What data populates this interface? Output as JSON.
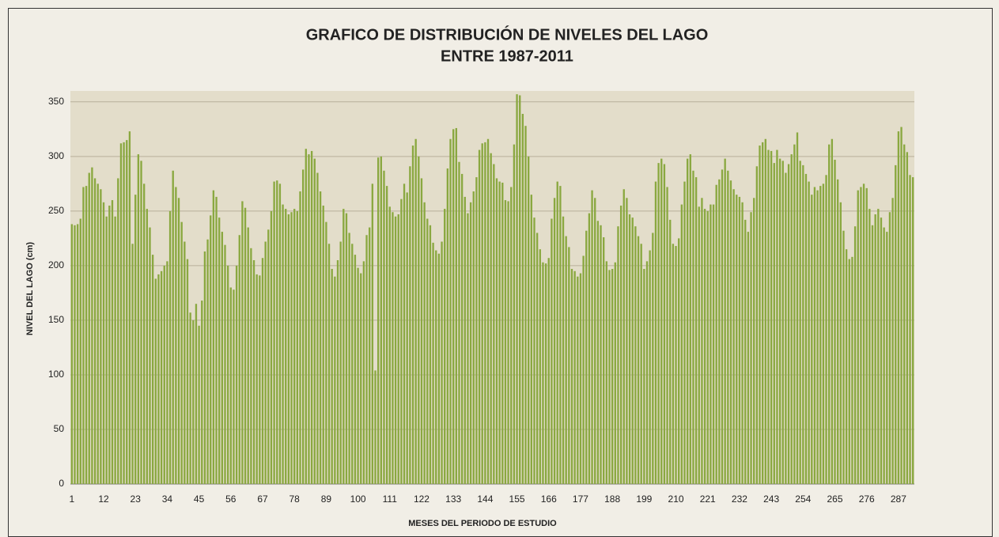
{
  "chart_data": {
    "type": "bar",
    "title": "GRAFICO DE DISTRIBUCIÓN DE NIVELES DEL LAGO",
    "subtitle": "ENTRE 1987-2011",
    "x_label": "MESES DEL PERIODO DE ESTUDIO",
    "y_label": "NIVEL DEL LAGO (cm)",
    "color": "#8aa840",
    "grid": true,
    "ylim": [
      0,
      360
    ],
    "yticks": [
      0,
      50,
      100,
      150,
      200,
      250,
      300,
      350
    ],
    "categories": [
      1,
      null,
      null,
      null,
      null,
      null,
      null,
      null,
      null,
      null,
      null,
      12,
      null,
      null,
      null,
      null,
      null,
      null,
      null,
      null,
      null,
      null,
      23,
      null,
      null,
      null,
      null,
      null,
      null,
      null,
      null,
      null,
      null,
      34,
      null,
      null,
      null,
      null,
      null,
      null,
      null,
      null,
      null,
      null,
      45,
      null,
      null,
      null,
      null,
      null,
      null,
      null,
      null,
      null,
      null,
      56,
      null,
      null,
      null,
      null,
      null,
      null,
      null,
      null,
      null,
      null,
      67,
      null,
      null,
      null,
      null,
      null,
      null,
      null,
      null,
      null,
      null,
      78,
      null,
      null,
      null,
      null,
      null,
      null,
      null,
      null,
      null,
      null,
      89,
      null,
      null,
      null,
      null,
      null,
      null,
      null,
      null,
      null,
      null,
      100,
      null,
      null,
      null,
      null,
      null,
      null,
      null,
      null,
      null,
      null,
      111,
      null,
      null,
      null,
      null,
      null,
      null,
      null,
      null,
      null,
      null,
      122,
      null,
      null,
      null,
      null,
      null,
      null,
      null,
      null,
      null,
      null,
      133,
      null,
      null,
      null,
      null,
      null,
      null,
      null,
      null,
      null,
      null,
      144,
      null,
      null,
      null,
      null,
      null,
      null,
      null,
      null,
      null,
      null,
      155,
      null,
      null,
      null,
      null,
      null,
      null,
      null,
      null,
      null,
      null,
      166,
      null,
      null,
      null,
      null,
      null,
      null,
      null,
      null,
      null,
      null,
      177,
      null,
      null,
      null,
      null,
      null,
      null,
      null,
      null,
      null,
      null,
      188,
      null,
      null,
      null,
      null,
      null,
      null,
      null,
      null,
      null,
      null,
      199,
      null,
      null,
      null,
      null,
      null,
      null,
      null,
      null,
      null,
      null,
      210,
      null,
      null,
      null,
      null,
      null,
      null,
      null,
      null,
      null,
      null,
      221,
      null,
      null,
      null,
      null,
      null,
      null,
      null,
      null,
      null,
      null,
      232,
      null,
      null,
      null,
      null,
      null,
      null,
      null,
      null,
      null,
      null,
      243,
      null,
      null,
      null,
      null,
      null,
      null,
      null,
      null,
      null,
      null,
      254,
      null,
      null,
      null,
      null,
      null,
      null,
      null,
      null,
      null,
      null,
      265,
      null,
      null,
      null,
      null,
      null,
      null,
      null,
      null,
      null,
      null,
      276,
      null,
      null,
      null,
      null,
      null,
      null,
      null,
      null,
      null,
      null,
      287,
      null,
      null,
      null,
      null,
      null
    ],
    "values": [
      238,
      237,
      238,
      243,
      272,
      273,
      285,
      290,
      280,
      275,
      270,
      258,
      245,
      255,
      260,
      245,
      280,
      312,
      313,
      315,
      323,
      220,
      265,
      302,
      296,
      275,
      252,
      235,
      210,
      188,
      192,
      195,
      200,
      204,
      250,
      287,
      272,
      262,
      240,
      222,
      206,
      157,
      150,
      165,
      145,
      168,
      213,
      224,
      246,
      269,
      263,
      244,
      231,
      219,
      200,
      180,
      178,
      200,
      228,
      259,
      253,
      235,
      216,
      205,
      192,
      191,
      207,
      222,
      233,
      250,
      277,
      278,
      275,
      256,
      252,
      247,
      249,
      252,
      250,
      268,
      288,
      307,
      302,
      305,
      298,
      285,
      268,
      255,
      240,
      220,
      197,
      190,
      205,
      222,
      252,
      248,
      230,
      220,
      210,
      198,
      193,
      204,
      228,
      235,
      275,
      104,
      299,
      300,
      287,
      273,
      254,
      249,
      245,
      247,
      261,
      275,
      267,
      291,
      310,
      316,
      300,
      280,
      258,
      243,
      237,
      221,
      214,
      211,
      222,
      252,
      289,
      316,
      325,
      326,
      295,
      284,
      263,
      248,
      258,
      268,
      281,
      306,
      312,
      313,
      316,
      303,
      293,
      280,
      277,
      276,
      260,
      259,
      272,
      311,
      357,
      356,
      339,
      328,
      300,
      265,
      244,
      230,
      215,
      203,
      202,
      207,
      243,
      262,
      277,
      273,
      245,
      227,
      217,
      197,
      195,
      190,
      193,
      209,
      232,
      248,
      269,
      262,
      241,
      237,
      226,
      204,
      196,
      197,
      203,
      236,
      255,
      270,
      262,
      247,
      244,
      236,
      227,
      220,
      197,
      204,
      214,
      230,
      277,
      294,
      298,
      293,
      272,
      242,
      220,
      218,
      225,
      256,
      277,
      298,
      302,
      287,
      281,
      254,
      262,
      252,
      250,
      256,
      256,
      274,
      279,
      288,
      298,
      287,
      278,
      270,
      265,
      263,
      258,
      242,
      231,
      249,
      262,
      291,
      310,
      313,
      316,
      306,
      305,
      294,
      306,
      298,
      296,
      285,
      293,
      302,
      311,
      322,
      296,
      292,
      284,
      277,
      265,
      272,
      269,
      273,
      275,
      283,
      311,
      316,
      297,
      279,
      258,
      232,
      215,
      206,
      208,
      236,
      269,
      272,
      275,
      271,
      252,
      237,
      247,
      252,
      244,
      235,
      231,
      249,
      262,
      292,
      323,
      327,
      311,
      304,
      283,
      281
    ]
  }
}
